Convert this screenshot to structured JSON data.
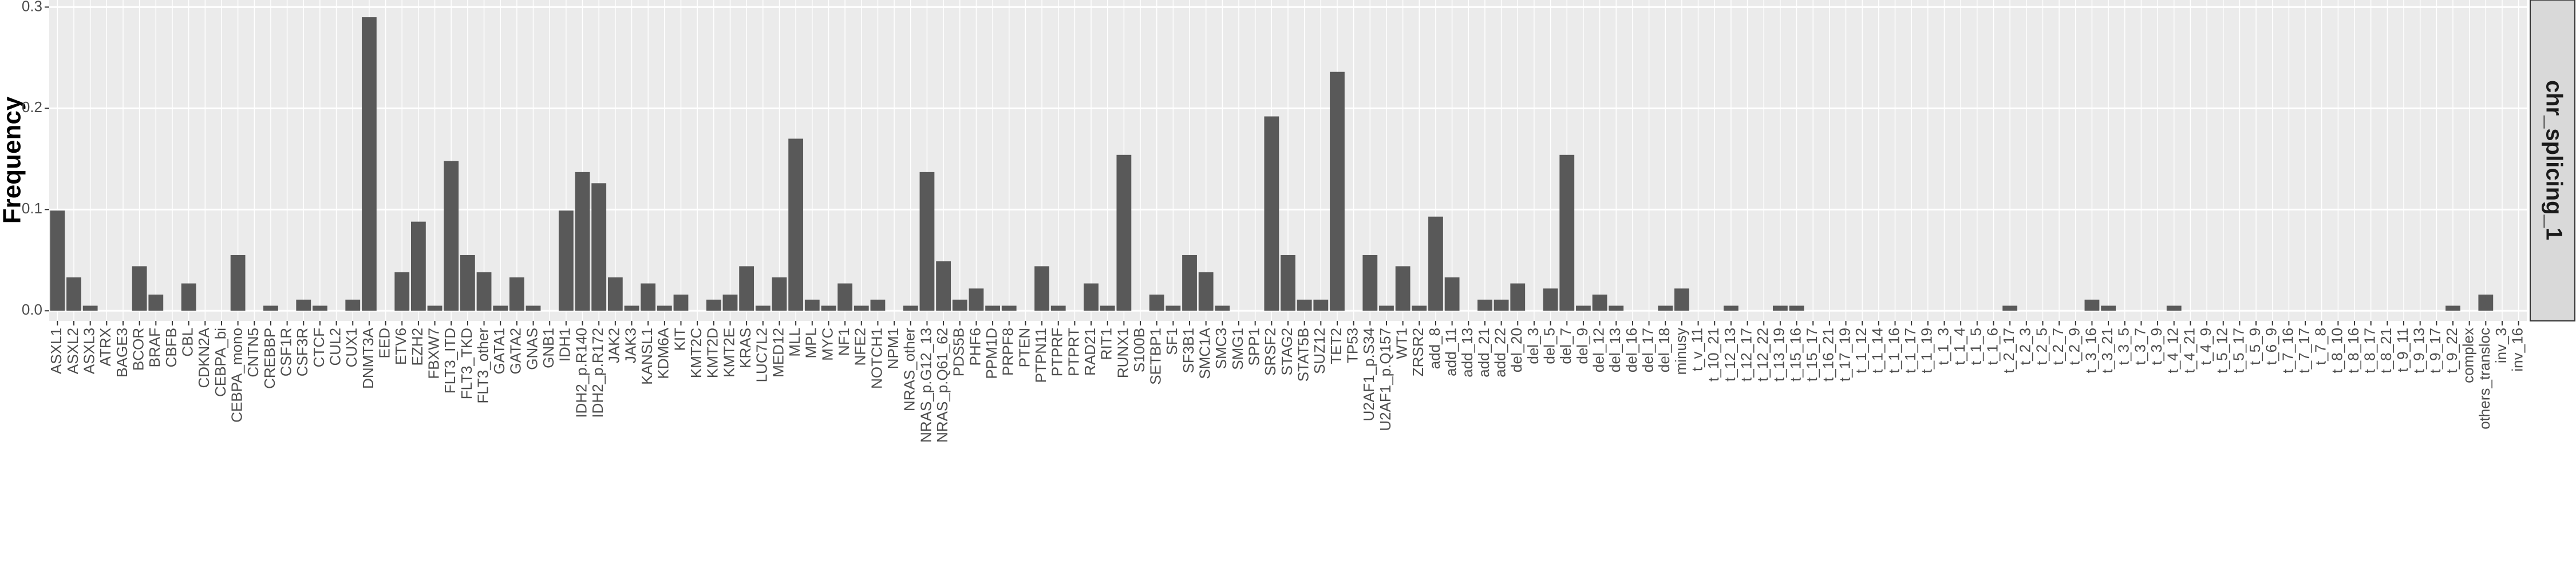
{
  "chart_data": {
    "type": "bar",
    "y_label": "Frequency",
    "facet_label": "chr_splicing_1",
    "color": "#595959",
    "grid": true,
    "ylim": [
      -0.01,
      0.307
    ],
    "yticks": [
      {
        "value": 0,
        "label": "0.0"
      },
      0.1,
      0.2,
      0.3
    ],
    "categories": [
      "ASXL1",
      "ASXL2",
      "ASXL3",
      "ATRX",
      "BAGE3",
      "BCOR",
      "BRAF",
      "CBFB",
      "CBL",
      "CDKN2A",
      "CEBPA_bi",
      "CEBPA_mono",
      "CNTN5",
      "CREBBP",
      "CSF1R",
      "CSF3R",
      "CTCF",
      "CUL2",
      "CUX1",
      "DNMT3A",
      "EED",
      "ETV6",
      "EZH2",
      "FBXW7",
      "FLT3_ITD",
      "FLT3_TKD",
      "FLT3_other",
      "GATA1",
      "GATA2",
      "GNAS",
      "GNB1",
      "IDH1",
      "IDH2_p.R140",
      "IDH2_p.R172",
      "JAK2",
      "JAK3",
      "KANSL1",
      "KDM6A",
      "KIT",
      "KMT2C",
      "KMT2D",
      "KMT2E",
      "KRAS",
      "LUC7L2",
      "MED12",
      "MLL",
      "MPL",
      "MYC",
      "NF1",
      "NFE2",
      "NOTCH1",
      "NPM1",
      "NRAS_other",
      "NRAS_p.G12_13",
      "NRAS_p.Q61_62",
      "PDS5B",
      "PHF6",
      "PPM1D",
      "PRPF8",
      "PTEN",
      "PTPN11",
      "PTPRF",
      "PTPRT",
      "RAD21",
      "RIT1",
      "RUNX1",
      "S100B",
      "SETBP1",
      "SF1",
      "SF3B1",
      "SMC1A",
      "SMC3",
      "SMG1",
      "SPP1",
      "SRSF2",
      "STAG2",
      "STAT5B",
      "SUZ12",
      "TET2",
      "TP53",
      "U2AF1_p.S34",
      "U2AF1_p.Q157",
      "WT1",
      "ZRSR2",
      "add_8",
      "add_11",
      "add_13",
      "add_21",
      "add_22",
      "del_20",
      "del_3",
      "del_5",
      "del_7",
      "del_9",
      "del_12",
      "del_13",
      "del_16",
      "del_17",
      "del_18",
      "minusy",
      "t_v_11",
      "t_10_21",
      "t_12_13",
      "t_12_17",
      "t_12_22",
      "t_13_19",
      "t_15_16",
      "t_15_17",
      "t_16_21",
      "t_17_19",
      "t_1_12",
      "t_1_14",
      "t_1_16",
      "t_1_17",
      "t_1_19",
      "t_1_3",
      "t_1_4",
      "t_1_5",
      "t_1_6",
      "t_2_17",
      "t_2_3",
      "t_2_5",
      "t_2_7",
      "t_2_9",
      "t_3_16",
      "t_3_21",
      "t_3_5",
      "t_3_7",
      "t_3_9",
      "t_4_12",
      "t_4_21",
      "t_4_9",
      "t_5_12",
      "t_5_17",
      "t_5_9",
      "t_6_9",
      "t_7_16",
      "t_7_17",
      "t_7_8",
      "t_8_10",
      "t_8_16",
      "t_8_17",
      "t_8_21",
      "t_9_11",
      "t_9_13",
      "t_9_17",
      "t_9_22",
      "complex",
      "others_transloc",
      "inv_3",
      "inv_16"
    ],
    "values": [
      0.099,
      0.033,
      0.005,
      0,
      0,
      0.044,
      0.016,
      0,
      0.027,
      0,
      0,
      0.055,
      0,
      0.005,
      0,
      0.011,
      0.005,
      0,
      0.011,
      0.29,
      0,
      0.038,
      0.088,
      0.005,
      0.148,
      0.055,
      0.038,
      0.005,
      0.033,
      0.005,
      0,
      0.099,
      0.137,
      0.126,
      0.033,
      0.005,
      0.027,
      0.005,
      0.016,
      0,
      0.011,
      0.016,
      0.044,
      0.005,
      0.033,
      0.17,
      0.011,
      0.005,
      0.027,
      0.005,
      0.011,
      0,
      0.005,
      0.137,
      0.049,
      0.011,
      0.022,
      0.005,
      0.005,
      0,
      0.044,
      0.005,
      0,
      0.027,
      0.005,
      0.154,
      0,
      0.016,
      0.005,
      0.055,
      0.038,
      0.005,
      0,
      0,
      0.192,
      0.055,
      0.011,
      0.011,
      0.236,
      0,
      0.055,
      0.005,
      0.044,
      0.005,
      0.093,
      0.033,
      0,
      0.011,
      0.011,
      0.027,
      0,
      0.022,
      0.154,
      0.005,
      0.016,
      0.005,
      0,
      0,
      0.005,
      0.022,
      0,
      0,
      0.005,
      0,
      0,
      0.005,
      0.005,
      0,
      0,
      0,
      0,
      0,
      0,
      0,
      0,
      0,
      0,
      0,
      0,
      0.005,
      0,
      0,
      0,
      0,
      0.011,
      0.005,
      0,
      0,
      0,
      0.005,
      0,
      0,
      0,
      0,
      0,
      0,
      0,
      0,
      0,
      0,
      0,
      0,
      0,
      0,
      0,
      0,
      0.005,
      0,
      0.016,
      0,
      0
    ]
  }
}
